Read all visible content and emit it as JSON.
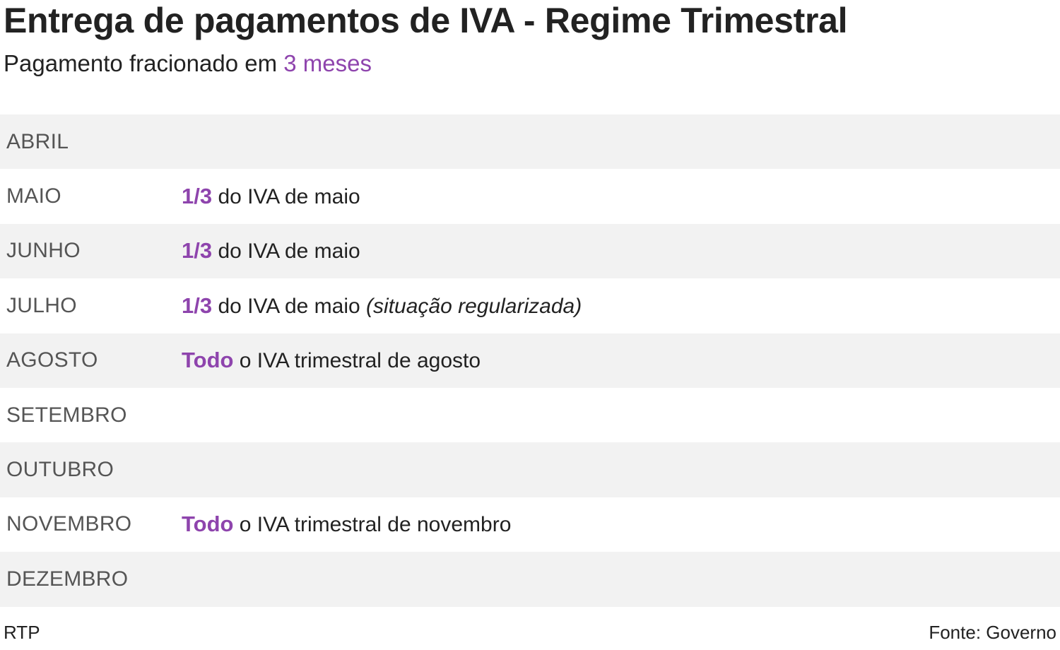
{
  "title": "Entrega de pagamentos de IVA - Regime Trimestral",
  "subtitle": {
    "prefix": "Pagamento fracionado em ",
    "highlight": "3 meses"
  },
  "accent_color": "#8e44ad",
  "rows": [
    {
      "month": "ABRIL",
      "highlight": "",
      "text": "",
      "note": ""
    },
    {
      "month": "MAIO",
      "highlight": "1/3",
      "text": " do IVA de maio",
      "note": ""
    },
    {
      "month": "JUNHO",
      "highlight": "1/3",
      "text": " do IVA de maio",
      "note": ""
    },
    {
      "month": "JULHO",
      "highlight": "1/3",
      "text": " do IVA de maio ",
      "note": "(situação regularizada)"
    },
    {
      "month": "AGOSTO",
      "highlight": "Todo",
      "text": " o IVA trimestral de agosto",
      "note": ""
    },
    {
      "month": "SETEMBRO",
      "highlight": "",
      "text": "",
      "note": ""
    },
    {
      "month": "OUTUBRO",
      "highlight": "",
      "text": "",
      "note": ""
    },
    {
      "month": "NOVEMBRO",
      "highlight": "Todo",
      "text": " o IVA trimestral de novembro",
      "note": ""
    },
    {
      "month": "DEZEMBRO",
      "highlight": "",
      "text": "",
      "note": ""
    }
  ],
  "footer": {
    "credit": "RTP",
    "source": "Fonte: Governo"
  }
}
